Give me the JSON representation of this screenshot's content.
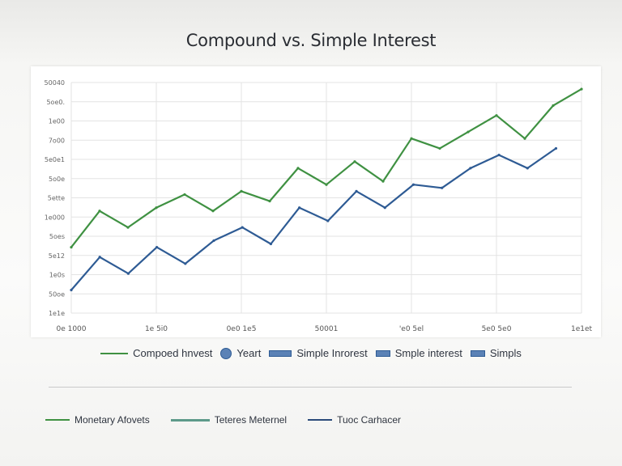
{
  "chart_data": {
    "type": "line",
    "title": "Compound vs. Simple Interest",
    "xlabel": "",
    "ylabel": "",
    "x_ticks": [
      "0e 1000",
      "1e 5i0",
      "0e0 1e5",
      "50001",
      "'e0 5el",
      "5e0 5e0",
      "1e1et"
    ],
    "y_ticks": [
      "50040",
      "5oe0.",
      "1e00",
      "7o00",
      "5e0e1",
      "5o0e",
      "5ette",
      "1e000",
      "5oes",
      "5e12",
      "1e0s",
      "50oe",
      "1e1e"
    ],
    "grid": true,
    "series": [
      {
        "name": "Compoed hnvest",
        "color": "#3f9142",
        "values": [
          2.0,
          3.1,
          2.6,
          3.2,
          3.6,
          3.1,
          3.7,
          3.4,
          4.4,
          3.9,
          4.6,
          4.0,
          5.3,
          5.0,
          5.5,
          6.0,
          5.3,
          6.3,
          6.8
        ]
      },
      {
        "name": "Simple Inrorest",
        "color": "#2e5b94",
        "values": [
          0.7,
          1.7,
          1.2,
          2.0,
          1.5,
          2.2,
          2.6,
          2.1,
          3.2,
          2.8,
          3.7,
          3.2,
          3.9,
          3.8,
          4.4,
          4.8,
          4.4,
          5.0
        ]
      }
    ],
    "ylim": [
      0,
      7
    ]
  },
  "legend": {
    "items": [
      {
        "label": "Compoed hnvest",
        "swatch": "line"
      },
      {
        "label": "Yeart",
        "swatch": "dot"
      },
      {
        "label": "Simple Inrorest",
        "swatch": "box"
      },
      {
        "label": "Smple interest",
        "swatch": "box-short"
      },
      {
        "label": "Simpls",
        "swatch": "box-short"
      }
    ]
  },
  "legend2": {
    "items": [
      {
        "label": "Monetary Afovets",
        "swatch": "green"
      },
      {
        "label": "Teteres Meternel",
        "swatch": "mixed"
      },
      {
        "label": "Tuoc Carhacer",
        "swatch": "navy"
      }
    ]
  }
}
